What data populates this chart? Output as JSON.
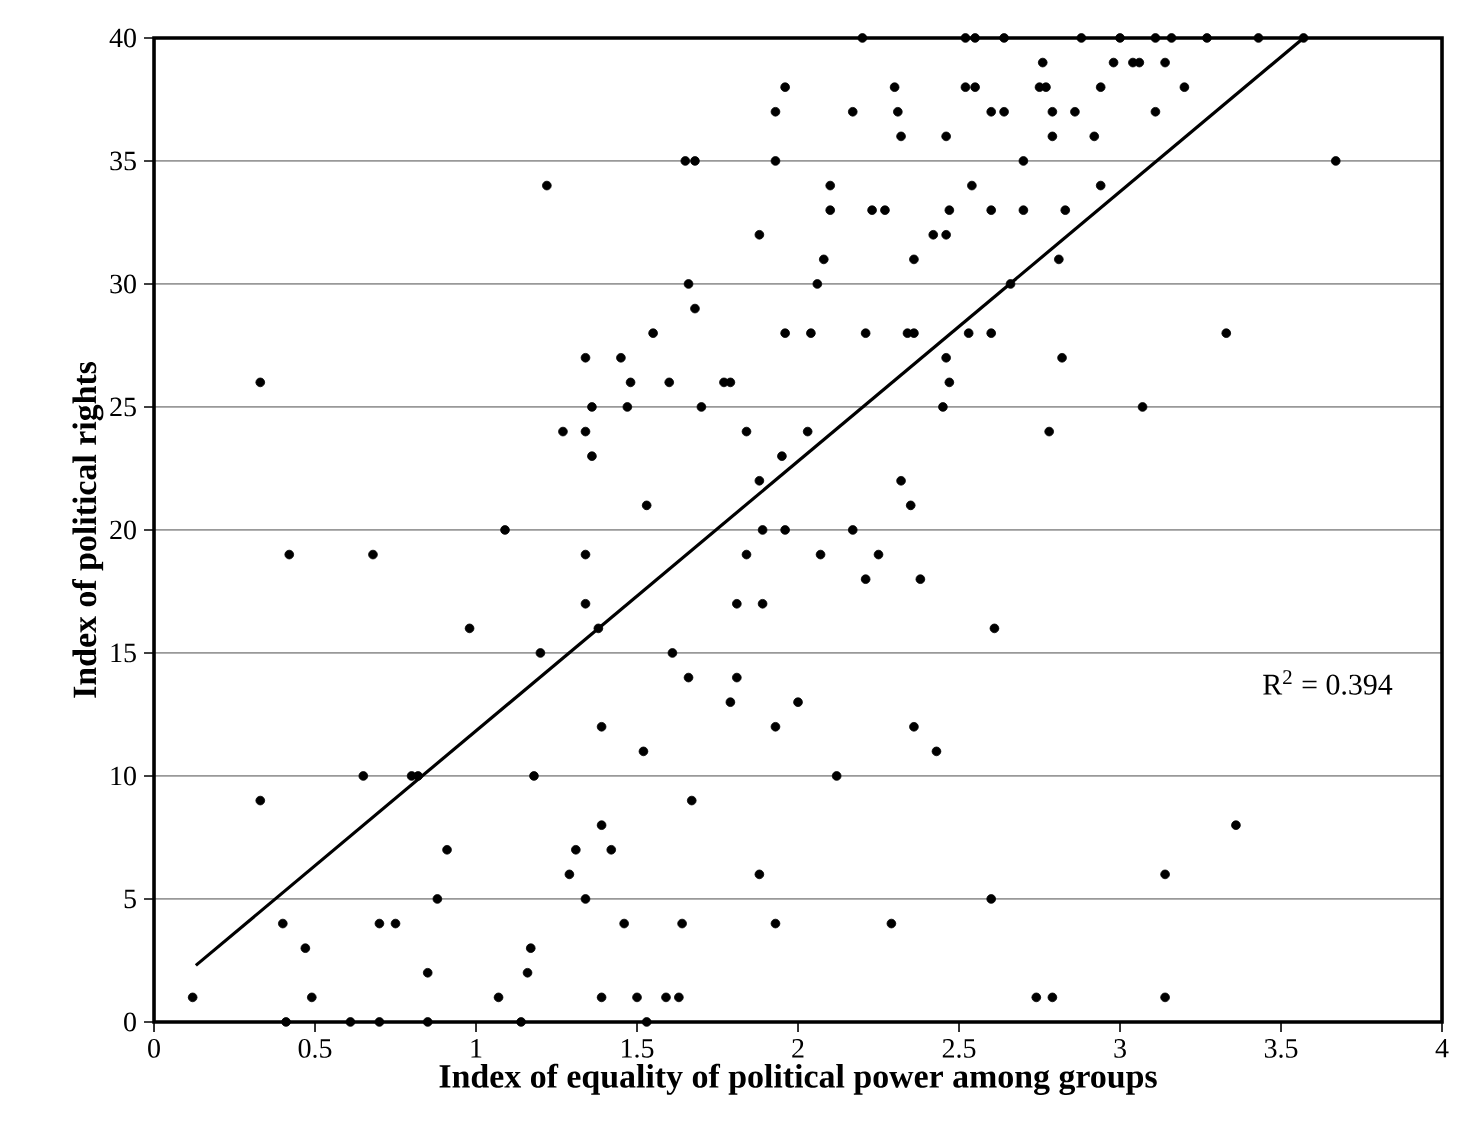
{
  "chart_data": {
    "type": "scatter",
    "xlabel": "Index of equality of political power among groups",
    "ylabel": "Index of political rights",
    "xlim": [
      0,
      4
    ],
    "ylim": [
      0,
      40
    ],
    "xticks": [
      0,
      0.5,
      1,
      1.5,
      2,
      2.5,
      3,
      3.5,
      4
    ],
    "yticks": [
      0,
      5,
      10,
      15,
      20,
      25,
      30,
      35,
      40
    ],
    "grid": "y",
    "annotations": [
      "R$^{2}$ = 0.394"
    ],
    "series": [
      {
        "marker": "circle",
        "color": "#000000",
        "x": [
          2.2,
          2.52,
          2.55,
          2.64,
          2.88,
          3.0,
          3.11,
          3.16,
          3.27,
          3.43,
          3.57,
          2.76,
          2.98,
          3.04,
          3.06,
          3.14,
          1.96,
          2.3,
          2.52,
          2.55,
          2.75,
          2.77,
          2.94,
          3.2,
          1.93,
          2.17,
          2.31,
          2.6,
          2.64,
          2.79,
          2.86,
          3.11,
          2.32,
          2.46,
          2.79,
          2.92,
          1.65,
          1.68,
          1.93,
          2.7,
          3.67,
          1.22,
          2.1,
          2.54,
          2.94,
          2.1,
          2.23,
          2.27,
          2.47,
          2.6,
          2.7,
          2.83,
          1.88,
          2.42,
          2.46,
          2.08,
          2.36,
          2.81,
          1.66,
          2.06,
          2.66,
          1.68,
          1.55,
          1.96,
          2.04,
          2.21,
          2.34,
          2.36,
          2.53,
          2.6,
          3.33,
          1.34,
          1.45,
          2.46,
          2.82,
          0.33,
          1.48,
          1.6,
          1.77,
          1.79,
          2.47,
          1.36,
          1.47,
          1.7,
          2.45,
          3.07,
          1.27,
          1.34,
          1.84,
          2.03,
          2.78,
          1.36,
          1.95,
          1.88,
          2.32,
          1.53,
          2.35,
          1.09,
          1.89,
          1.96,
          2.17,
          0.42,
          0.68,
          1.34,
          1.84,
          2.07,
          2.25,
          2.21,
          2.38,
          1.34,
          1.81,
          1.89,
          0.98,
          1.38,
          2.61,
          1.2,
          1.61,
          1.66,
          1.81,
          1.79,
          2.0,
          1.39,
          1.93,
          2.36,
          1.52,
          2.43,
          0.65,
          0.8,
          0.82,
          1.18,
          2.12,
          0.33,
          1.67,
          1.39,
          3.36,
          0.91,
          1.31,
          1.42,
          1.29,
          1.88,
          3.14,
          0.88,
          1.34,
          2.6,
          0.4,
          0.7,
          0.75,
          1.46,
          1.64,
          1.93,
          2.29,
          0.47,
          1.17,
          0.85,
          1.16,
          0.12,
          0.49,
          1.07,
          1.39,
          1.5,
          1.59,
          1.63,
          2.74,
          2.79,
          3.14,
          0.41,
          0.61,
          0.7,
          0.85,
          1.14,
          1.53
        ],
        "values": [
          40,
          40,
          40,
          40,
          40,
          40,
          40,
          40,
          40,
          40,
          40,
          39,
          39,
          39,
          39,
          39,
          38,
          38,
          38,
          38,
          38,
          38,
          38,
          38,
          37,
          37,
          37,
          37,
          37,
          37,
          37,
          37,
          36,
          36,
          36,
          36,
          35,
          35,
          35,
          35,
          35,
          34,
          34,
          34,
          34,
          33,
          33,
          33,
          33,
          33,
          33,
          33,
          32,
          32,
          32,
          31,
          31,
          31,
          30,
          30,
          30,
          29,
          28,
          28,
          28,
          28,
          28,
          28,
          28,
          28,
          28,
          27,
          27,
          27,
          27,
          26,
          26,
          26,
          26,
          26,
          26,
          25,
          25,
          25,
          25,
          25,
          24,
          24,
          24,
          24,
          24,
          23,
          23,
          22,
          22,
          21,
          21,
          20,
          20,
          20,
          20,
          19,
          19,
          19,
          19,
          19,
          19,
          18,
          18,
          17,
          17,
          17,
          16,
          16,
          16,
          15,
          15,
          14,
          14,
          13,
          13,
          12,
          12,
          12,
          11,
          11,
          10,
          10,
          10,
          10,
          10,
          9,
          9,
          8,
          8,
          7,
          7,
          7,
          6,
          6,
          6,
          5,
          5,
          5,
          4,
          4,
          4,
          4,
          4,
          4,
          4,
          3,
          3,
          2,
          2,
          1,
          1,
          1,
          1,
          1,
          1,
          1,
          1,
          1,
          1,
          0,
          0,
          0,
          0,
          0,
          0
        ]
      },
      {
        "type": "line",
        "marker": "none",
        "color": "#000000",
        "x": [
          0.13,
          3.57
        ],
        "values": [
          2.3,
          40
        ]
      }
    ]
  }
}
